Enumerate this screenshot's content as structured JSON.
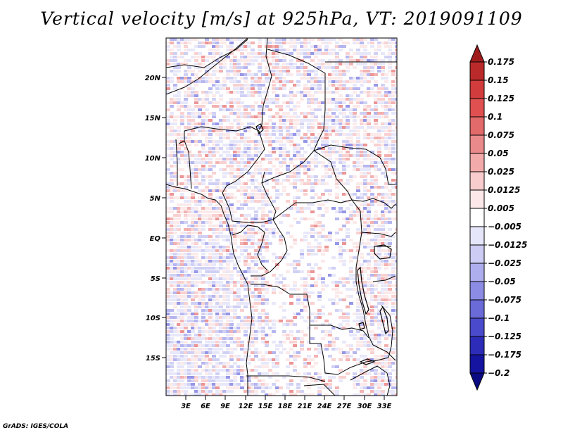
{
  "title": "Vertical velocity [m/s] at 925hPa, VT: 2019091109",
  "credit": "GrADS: IGES/COLA",
  "map": {
    "variable": "Vertical velocity",
    "units": "m/s",
    "level": "925hPa",
    "valid_time": "2019091109",
    "lat_labels": [
      "20N",
      "15N",
      "10N",
      "5N",
      "EQ",
      "5S",
      "10S",
      "15S"
    ],
    "lon_labels": [
      "3E",
      "6E",
      "9E",
      "12E",
      "15E",
      "18E",
      "21E",
      "24E",
      "27E",
      "30E",
      "33E"
    ]
  },
  "colorbar": {
    "labels": [
      "0.175",
      "0.15",
      "0.125",
      "0.1",
      "0.075",
      "0.05",
      "0.025",
      "0.0125",
      "0.005",
      "-0.005",
      "-0.0125",
      "-0.025",
      "-0.05",
      "-0.075",
      "-0.1",
      "-0.125",
      "-0.175",
      "-0.2"
    ],
    "colors": [
      "#a01c1c",
      "#bb2a2a",
      "#d23c3c",
      "#e05050",
      "#e36a6a",
      "#ea8a8a",
      "#f2aaaa",
      "#f8cccc",
      "#fce8e8",
      "#ffffff",
      "#e6e6fa",
      "#ccccf4",
      "#aeaeee",
      "#8c8ce4",
      "#6a6ad8",
      "#4a4acc",
      "#2c2cb8",
      "#1414a0",
      "#0a0a82"
    ]
  }
}
